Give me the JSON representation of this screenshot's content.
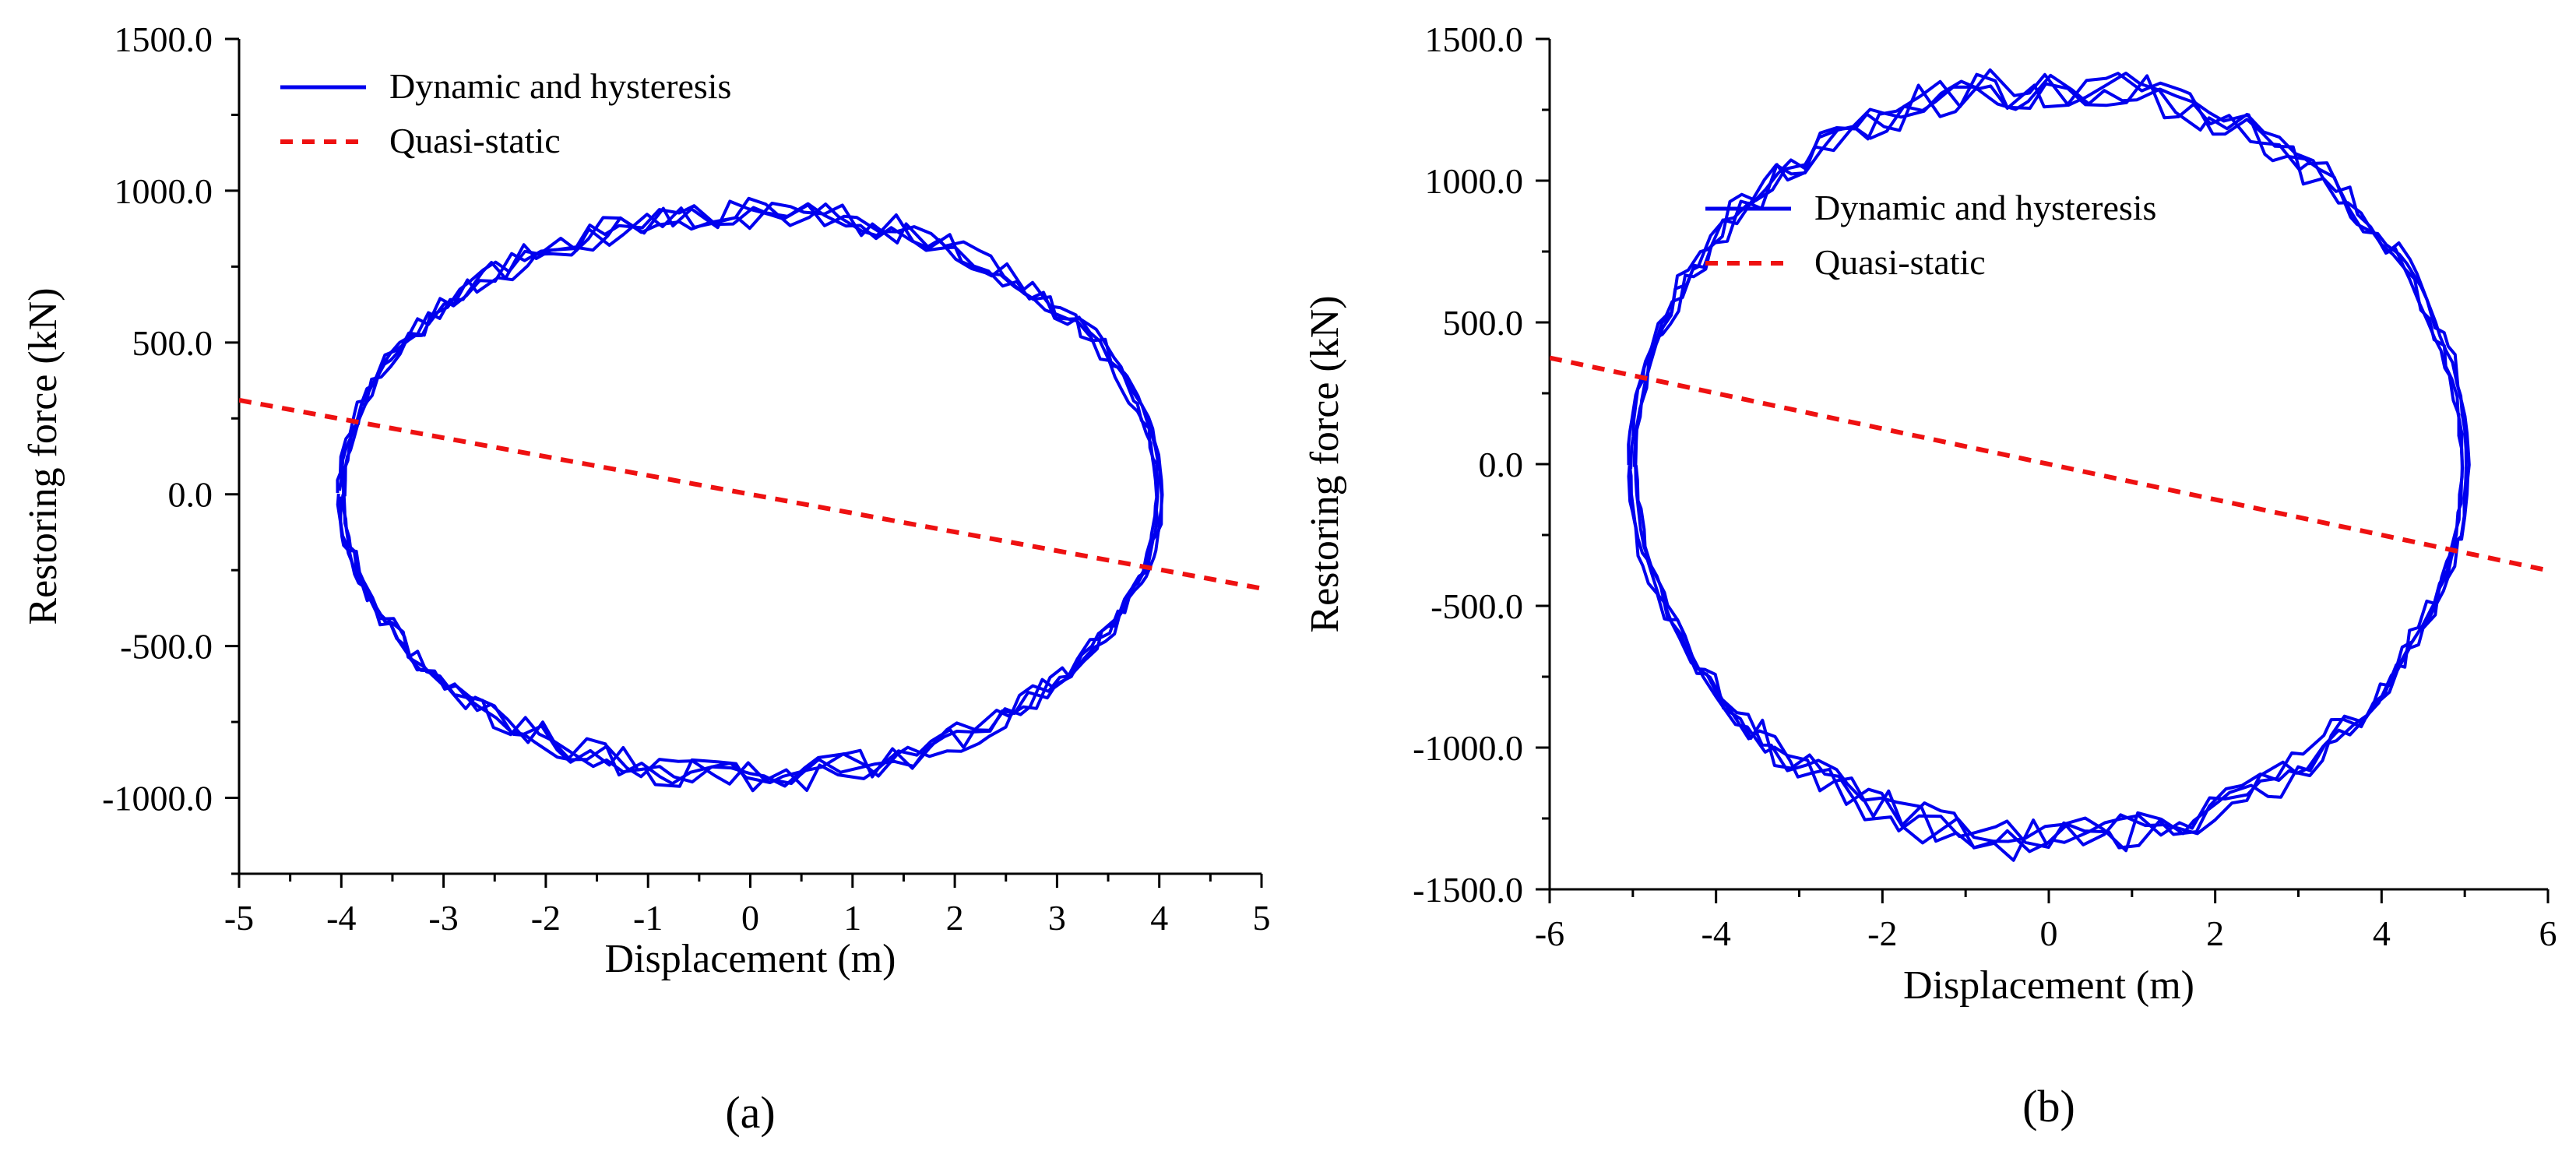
{
  "chart_data": [
    {
      "panel_label": "(a)",
      "type": "line",
      "xlabel": "Displacement (m)",
      "ylabel": "Restoring force (kN)",
      "xlim": [
        -5,
        5
      ],
      "ylim": [
        -1250,
        1500
      ],
      "x_ticks": [
        -5,
        -4,
        -3,
        -2,
        -1,
        0,
        1,
        2,
        3,
        4,
        5
      ],
      "x_tick_labels": [
        "-5",
        "-4",
        "-3",
        "-2",
        "-1",
        "0",
        "1",
        "2",
        "3",
        "4",
        "5"
      ],
      "y_ticks": [
        -1000,
        -500,
        0,
        500,
        1000,
        1500
      ],
      "y_tick_labels": [
        "-1000.0",
        "-500.0",
        "0.0",
        "500.0",
        "1000.0",
        "1500.0"
      ],
      "legend_position": "top-left",
      "series": [
        {
          "name": "Dynamic and hysteresis",
          "style": "solid",
          "color": "#0000ee",
          "description_shape": "hysteresis loop, amplitude 4 m, force amplitude ~930 kN, several noisy cycles",
          "amplitude_x": 4.0,
          "amplitude_force": 930,
          "cycles": 4
        },
        {
          "name": "Quasi-static",
          "style": "dashed",
          "color": "#ee1111",
          "x": [
            -5,
            5
          ],
          "y": [
            310,
            -310
          ]
        }
      ]
    },
    {
      "panel_label": "(b)",
      "type": "line",
      "xlabel": "Displacement (m)",
      "ylabel": "Restoring force (kN)",
      "xlim": [
        -6,
        6
      ],
      "ylim": [
        -1500,
        1500
      ],
      "x_ticks": [
        -6,
        -4,
        -2,
        0,
        2,
        4,
        6
      ],
      "x_tick_labels": [
        "-6",
        "-4",
        "-2",
        "0",
        "2",
        "4",
        "6"
      ],
      "y_ticks": [
        -1500,
        -1000,
        -500,
        0,
        500,
        1000,
        1500
      ],
      "y_tick_labels": [
        "-1500.0",
        "-1000.0",
        "-500.0",
        "0.0",
        "500.0",
        "1000.0",
        "1500.0"
      ],
      "legend_position": "upper-center",
      "series": [
        {
          "name": "Dynamic and hysteresis",
          "style": "solid",
          "color": "#0000ee",
          "amplitude_x": 5.0,
          "amplitude_force": 1330,
          "cycles": 4
        },
        {
          "name": "Quasi-static",
          "style": "dashed",
          "color": "#ee1111",
          "x": [
            -6,
            6
          ],
          "y": [
            375,
            -375
          ]
        }
      ]
    }
  ]
}
